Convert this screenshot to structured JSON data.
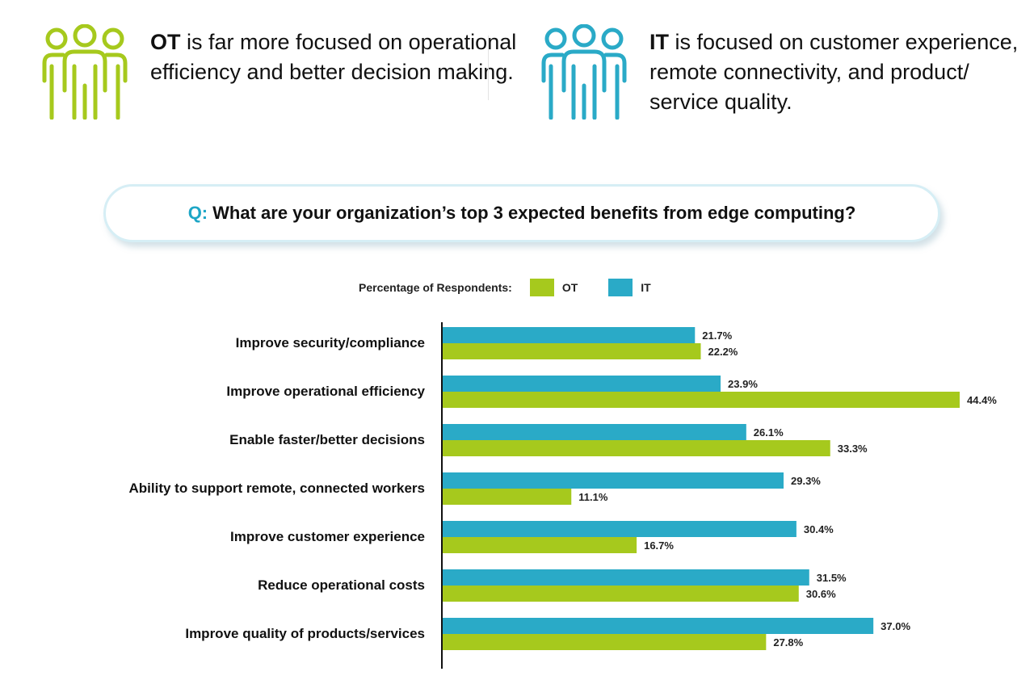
{
  "colors": {
    "ot": "#a6c91d",
    "it": "#2aaac7"
  },
  "personas": {
    "ot": {
      "icon": "people-group-icon",
      "lead": "OT",
      "text": " is far more focused on operational efficiency and better decision making."
    },
    "it": {
      "icon": "people-group-icon",
      "lead": "IT",
      "text": " is focused on customer experience, remote connectivity, and product/ service quality."
    }
  },
  "question": {
    "prefix": "Q:",
    "text": "What are your organization’s top 3 expected benefits from edge computing?"
  },
  "legend": {
    "title": "Percentage of Respondents:",
    "ot": "OT",
    "it": "IT"
  },
  "chart_data": {
    "type": "bar",
    "orientation": "horizontal",
    "categories": [
      "Improve security/compliance",
      "Improve operational efficiency",
      "Enable faster/better decisions",
      "Ability to support remote, connected workers",
      "Improve customer experience",
      "Reduce operational costs",
      "Improve quality of products/services"
    ],
    "series": [
      {
        "name": "IT",
        "values": [
          21.7,
          23.9,
          26.1,
          29.3,
          30.4,
          31.5,
          37.0
        ],
        "labels": [
          "21.7%",
          "23.9%",
          "26.1%",
          "29.3%",
          "30.4%",
          "31.5%",
          "37.0%"
        ]
      },
      {
        "name": "OT",
        "values": [
          22.2,
          44.4,
          33.3,
          11.1,
          16.7,
          30.6,
          27.8
        ],
        "labels": [
          "22.2%",
          "44.4%",
          "33.3%",
          "11.1%",
          "16.7%",
          "30.6%",
          "27.8%"
        ]
      }
    ],
    "xlim": [
      0,
      44.4
    ],
    "legend_position": "top",
    "grid": false
  }
}
